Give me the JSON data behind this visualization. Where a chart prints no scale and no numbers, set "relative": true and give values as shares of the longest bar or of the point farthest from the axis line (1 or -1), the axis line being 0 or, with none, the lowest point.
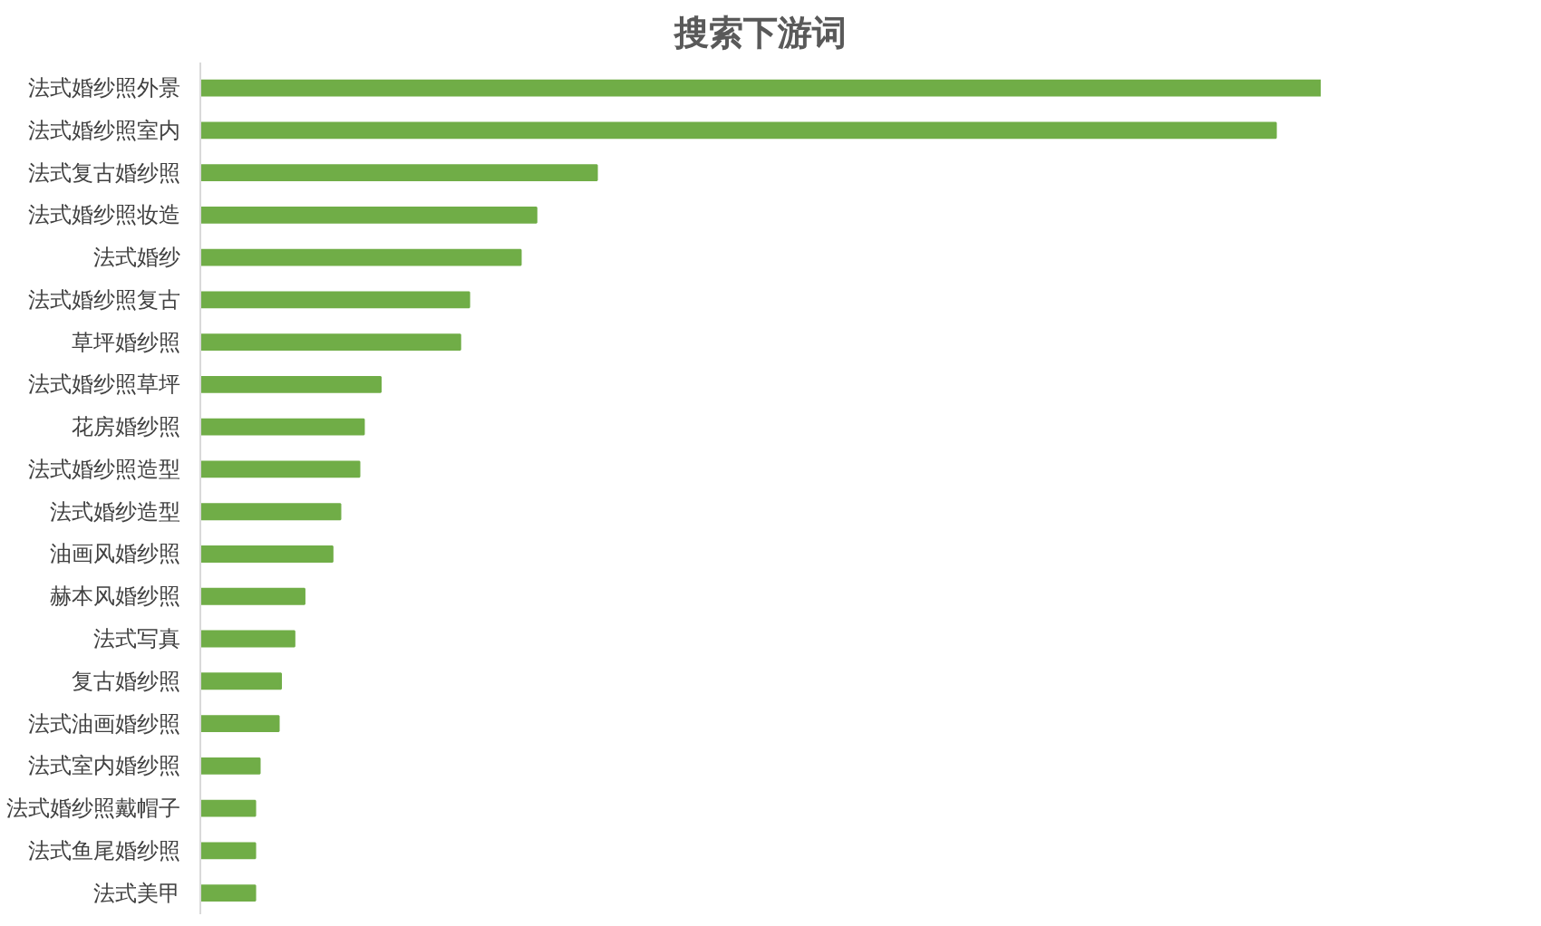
{
  "chart_data": {
    "type": "bar",
    "orientation": "horizontal",
    "relative": true,
    "title": "搜索下游词",
    "color": "#70ad47",
    "grid": false,
    "categories": [
      "法式婚纱照外景",
      "法式婚纱照室内",
      "法式复古婚纱照",
      "法式婚纱照妆造",
      "法式婚纱",
      "法式婚纱照复古",
      "草坪婚纱照",
      "法式婚纱照草坪",
      "花房婚纱照",
      "法式婚纱照造型",
      "法式婚纱造型",
      "油画风婚纱照",
      "赫本风婚纱照",
      "法式写真",
      "复古婚纱照",
      "法式油画婚纱照",
      "法式室内婚纱照",
      "法式婚纱照戴帽子",
      "法式鱼尾婚纱照",
      "法式美甲"
    ],
    "values": [
      1.0,
      0.96,
      0.354,
      0.3,
      0.286,
      0.24,
      0.232,
      0.161,
      0.146,
      0.142,
      0.125,
      0.118,
      0.093,
      0.084,
      0.072,
      0.07,
      0.053,
      0.049,
      0.049,
      0.049
    ]
  }
}
